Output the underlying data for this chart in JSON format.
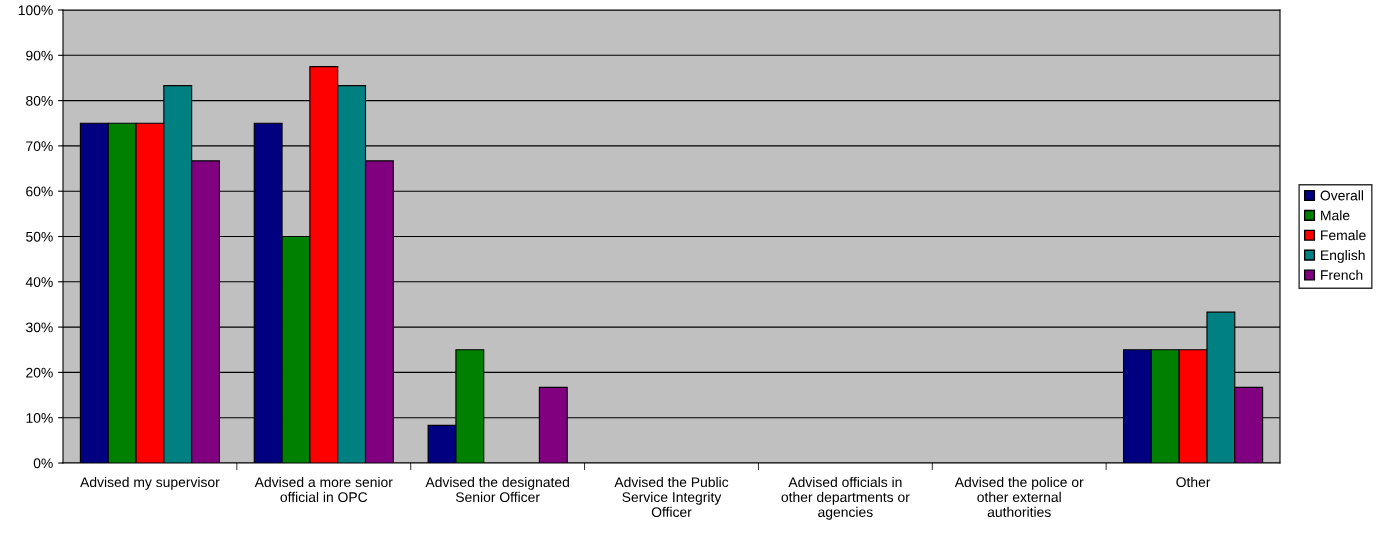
{
  "chart_data": {
    "type": "bar",
    "categories": [
      "Advised my supervisor",
      "Advised a more senior official in OPC",
      "Advised the designated Senior Officer",
      "Advised the Public Service Integrity Officer",
      "Advised officials in other departments or agencies",
      "Advised the police or other external authorities",
      "Other"
    ],
    "series": [
      {
        "name": "Overall",
        "color": "#000080",
        "values": [
          75,
          75,
          8.3,
          0,
          0,
          0,
          25
        ]
      },
      {
        "name": "Male",
        "color": "#008000",
        "values": [
          75,
          50,
          25,
          0,
          0,
          0,
          25
        ]
      },
      {
        "name": "Female",
        "color": "#ff0000",
        "values": [
          75,
          87.5,
          0,
          0,
          0,
          0,
          25
        ]
      },
      {
        "name": "English",
        "color": "#008080",
        "values": [
          83.3,
          83.3,
          0,
          0,
          0,
          0,
          33.3
        ]
      },
      {
        "name": "French",
        "color": "#800080",
        "values": [
          66.7,
          66.7,
          16.7,
          0,
          0,
          0,
          16.7
        ]
      }
    ],
    "ylim": [
      0,
      100
    ],
    "yticks": [
      {
        "value": 0,
        "label": "0%"
      },
      {
        "value": 10,
        "label": "10%"
      },
      {
        "value": 20,
        "label": "20%"
      },
      {
        "value": 30,
        "label": "30%"
      },
      {
        "value": 40,
        "label": "40%"
      },
      {
        "value": 50,
        "label": "50%"
      },
      {
        "value": 60,
        "label": "60%"
      },
      {
        "value": 70,
        "label": "70%"
      },
      {
        "value": 80,
        "label": "80%"
      },
      {
        "value": 90,
        "label": "90%"
      },
      {
        "value": 100,
        "label": "100%"
      }
    ],
    "grid": "y",
    "legend": "right"
  }
}
